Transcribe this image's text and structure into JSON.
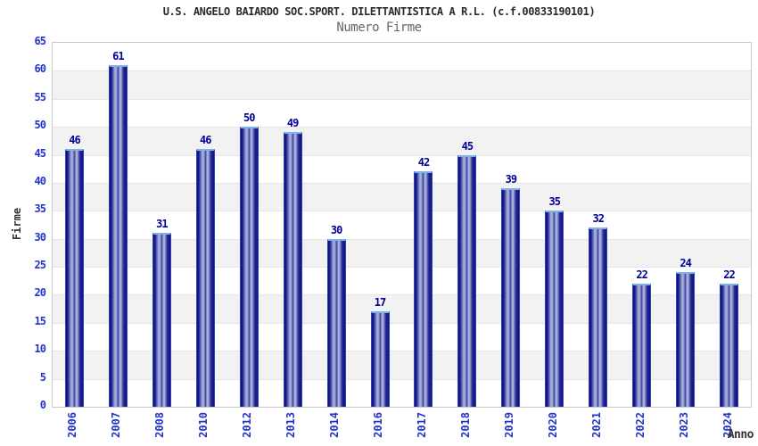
{
  "header": {
    "title": "U.S. ANGELO BAIARDO SOC.SPORT. DILETTANTISTICA A R.L. (c.f.00833190101)",
    "subtitle": "Numero Firme"
  },
  "chart_data": {
    "type": "bar",
    "title": "U.S. ANGELO BAIARDO SOC.SPORT. DILETTANTISTICA A R.L. (c.f.00833190101)",
    "subtitle": "Numero Firme",
    "xlabel": "Anno",
    "ylabel": "Firme",
    "categories": [
      "2006",
      "2007",
      "2008",
      "2010",
      "2012",
      "2013",
      "2014",
      "2016",
      "2017",
      "2018",
      "2019",
      "2020",
      "2021",
      "2022",
      "2023",
      "2024"
    ],
    "values": [
      46,
      61,
      31,
      46,
      50,
      49,
      30,
      17,
      42,
      45,
      39,
      35,
      32,
      22,
      24,
      22
    ],
    "ylim": [
      0,
      65
    ],
    "ytick_step": 5,
    "yticks": [
      0,
      5,
      10,
      15,
      20,
      25,
      30,
      35,
      40,
      45,
      50,
      55,
      60,
      65
    ],
    "legend": "none",
    "grid": "alternating horizontal bands with gridlines every 5 units",
    "colors": {
      "bar_dark": "#10107c",
      "bar_highlight": "#aab4de",
      "bar_edge": "#2b43bd",
      "bar_cap": "#7db3e8",
      "tick_label": "#2233cc",
      "value_label": "#000099",
      "title": "#2a2a2a",
      "subtitle": "#666666",
      "band_gray": "#f2f2f2",
      "band_white": "#ffffff",
      "gridline": "#e6e6e6",
      "plot_border": "#c9c9c9"
    }
  }
}
